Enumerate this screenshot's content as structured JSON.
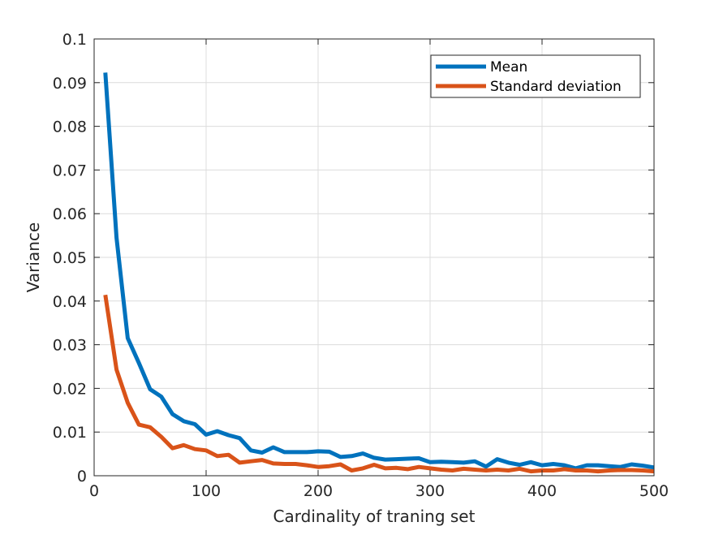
{
  "chart_data": {
    "type": "line",
    "title": "",
    "xlabel": "Cardinality of traning set",
    "ylabel": "Variance",
    "xlim": [
      0,
      500
    ],
    "ylim": [
      0,
      0.1
    ],
    "xticks": [
      0,
      100,
      200,
      300,
      400,
      500
    ],
    "xtick_labels": [
      "0",
      "100",
      "200",
      "300",
      "400",
      "500"
    ],
    "yticks": [
      0,
      0.01,
      0.02,
      0.03,
      0.04,
      0.05,
      0.06,
      0.07,
      0.08,
      0.09,
      0.1
    ],
    "ytick_labels": [
      "0",
      "0.01",
      "0.02",
      "0.03",
      "0.04",
      "0.05",
      "0.06",
      "0.07",
      "0.08",
      "0.09",
      "0.1"
    ],
    "grid": true,
    "legend_position": "top-right",
    "x": [
      10,
      20,
      30,
      40,
      50,
      60,
      70,
      80,
      90,
      100,
      110,
      120,
      130,
      140,
      150,
      160,
      170,
      180,
      190,
      200,
      210,
      220,
      230,
      240,
      250,
      260,
      270,
      280,
      290,
      300,
      310,
      320,
      330,
      340,
      350,
      360,
      370,
      380,
      390,
      400,
      410,
      420,
      430,
      440,
      450,
      460,
      470,
      480,
      490,
      500
    ],
    "series": [
      {
        "name": "Mean",
        "color": "#0072BD",
        "values": [
          0.0923,
          0.0545,
          0.0315,
          0.0258,
          0.0198,
          0.0181,
          0.0141,
          0.0125,
          0.0118,
          0.0094,
          0.0102,
          0.0093,
          0.0086,
          0.0058,
          0.0053,
          0.0065,
          0.0054,
          0.0054,
          0.0054,
          0.0056,
          0.0055,
          0.0043,
          0.0045,
          0.0051,
          0.0041,
          0.0037,
          0.0038,
          0.0039,
          0.004,
          0.0031,
          0.0032,
          0.0031,
          0.003,
          0.0033,
          0.0021,
          0.0038,
          0.003,
          0.0025,
          0.0031,
          0.0024,
          0.0027,
          0.0024,
          0.0017,
          0.0024,
          0.0024,
          0.0022,
          0.002,
          0.0026,
          0.0023,
          0.0019
        ]
      },
      {
        "name": "Standard deviation",
        "color": "#D95319",
        "values": [
          0.0414,
          0.0243,
          0.0167,
          0.0117,
          0.0111,
          0.0089,
          0.0063,
          0.007,
          0.0061,
          0.0058,
          0.0045,
          0.0048,
          0.003,
          0.0033,
          0.0036,
          0.0028,
          0.0027,
          0.0027,
          0.0024,
          0.002,
          0.0022,
          0.0026,
          0.0012,
          0.0017,
          0.0025,
          0.0017,
          0.0018,
          0.0015,
          0.002,
          0.0017,
          0.0014,
          0.0012,
          0.0016,
          0.0014,
          0.0012,
          0.0014,
          0.0012,
          0.0016,
          0.001,
          0.0012,
          0.0012,
          0.0015,
          0.0012,
          0.0012,
          0.001,
          0.0012,
          0.0013,
          0.0013,
          0.0012,
          0.001
        ]
      }
    ]
  }
}
